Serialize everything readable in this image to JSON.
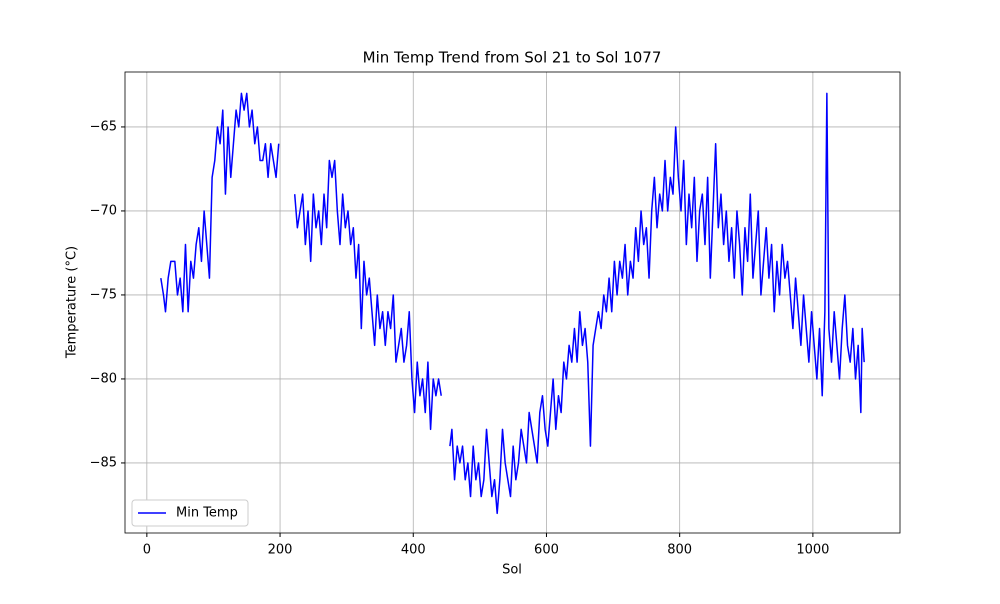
{
  "chart_data": {
    "type": "line",
    "title": "Min Temp Trend from Sol 21 to Sol 1077",
    "xlabel": "Sol",
    "ylabel": "Temperature (°C)",
    "x": [
      21,
      25,
      28,
      32,
      36,
      42,
      46,
      50,
      54,
      58,
      62,
      66,
      70,
      74,
      78,
      82,
      86,
      90,
      94,
      98,
      102,
      106,
      110,
      114,
      118,
      122,
      126,
      130,
      134,
      138,
      142,
      146,
      150,
      154,
      158,
      162,
      166,
      170,
      174,
      178,
      182,
      186,
      190,
      194,
      198,
      210,
      222,
      226,
      230,
      234,
      238,
      242,
      246,
      250,
      254,
      258,
      262,
      266,
      270,
      274,
      278,
      282,
      286,
      290,
      294,
      298,
      302,
      306,
      310,
      314,
      318,
      322,
      326,
      330,
      334,
      338,
      342,
      346,
      350,
      354,
      358,
      362,
      366,
      370,
      374,
      378,
      382,
      386,
      390,
      394,
      398,
      402,
      406,
      410,
      414,
      418,
      422,
      426,
      430,
      434,
      438,
      442,
      448,
      455,
      458,
      462,
      466,
      470,
      474,
      478,
      482,
      486,
      490,
      494,
      498,
      502,
      506,
      510,
      514,
      518,
      522,
      526,
      530,
      534,
      538,
      542,
      546,
      550,
      554,
      558,
      562,
      566,
      570,
      574,
      578,
      582,
      586,
      590,
      594,
      598,
      602,
      606,
      610,
      614,
      618,
      622,
      626,
      630,
      634,
      638,
      642,
      646,
      650,
      654,
      658,
      662,
      666,
      670,
      674,
      678,
      682,
      686,
      690,
      694,
      698,
      702,
      706,
      710,
      714,
      718,
      722,
      726,
      730,
      734,
      738,
      742,
      746,
      750,
      754,
      758,
      762,
      766,
      770,
      774,
      778,
      782,
      786,
      790,
      794,
      798,
      802,
      806,
      810,
      814,
      818,
      822,
      826,
      830,
      834,
      838,
      842,
      846,
      850,
      854,
      858,
      862,
      866,
      870,
      874,
      878,
      882,
      886,
      890,
      894,
      898,
      902,
      906,
      910,
      914,
      918,
      922,
      926,
      930,
      934,
      938,
      942,
      946,
      950,
      954,
      958,
      962,
      966,
      970,
      974,
      978,
      982,
      986,
      990,
      994,
      998,
      1002,
      1006,
      1010,
      1014,
      1018,
      1021,
      1024,
      1028,
      1032,
      1036,
      1040,
      1044,
      1048,
      1052,
      1056,
      1060,
      1064,
      1068,
      1072,
      1074,
      1077
    ],
    "series": [
      {
        "name": "Min Temp",
        "color": "#0000ff",
        "values": [
          -74,
          -75,
          -76,
          -74,
          -73,
          -73,
          -75,
          -74,
          -76,
          -72,
          -76,
          -73,
          -74,
          -72,
          -71,
          -73,
          -70,
          -72,
          -74,
          -68,
          -67,
          -65,
          -66,
          -64,
          -69,
          -65,
          -68,
          -66,
          -64,
          -65,
          -63,
          -64,
          -63,
          -65,
          -64,
          -66,
          -65,
          -67,
          -67,
          -66,
          -68,
          -66,
          -67,
          -68,
          -66,
          null,
          -69,
          -71,
          -70,
          -69,
          -72,
          -70,
          -73,
          -69,
          -71,
          -70,
          -72,
          -69,
          -71,
          -67,
          -68,
          -67,
          -70,
          -72,
          -69,
          -71,
          -70,
          -72,
          -71,
          -74,
          -72,
          -77,
          -73,
          -75,
          -74,
          -76,
          -78,
          -75,
          -77,
          -76,
          -78,
          -76,
          -77,
          -75,
          -79,
          -78,
          -77,
          -79,
          -78,
          -76,
          -80,
          -82,
          -79,
          -81,
          -80,
          -82,
          -79,
          -83,
          -80,
          -81,
          -80,
          -81,
          null,
          -84,
          -83,
          -86,
          -84,
          -85,
          -84,
          -86,
          -85,
          -87,
          -84,
          -86,
          -85,
          -87,
          -86,
          -83,
          -85,
          -87,
          -86,
          -88,
          -86,
          -83,
          -85,
          -86,
          -87,
          -84,
          -86,
          -85,
          -83,
          -84,
          -85,
          -82,
          -83,
          -84,
          -85,
          -82,
          -81,
          -83,
          -84,
          -82,
          -80,
          -83,
          -81,
          -82,
          -79,
          -80,
          -78,
          -79,
          -77,
          -79,
          -76,
          -78,
          -77,
          -79,
          -84,
          -78,
          -77,
          -76,
          -77,
          -75,
          -76,
          -74,
          -76,
          -73,
          -75,
          -73,
          -74,
          -72,
          -75,
          -73,
          -74,
          -71,
          -73,
          -70,
          -72,
          -71,
          -74,
          -70,
          -68,
          -71,
          -69,
          -70,
          -67,
          -70,
          -68,
          -69,
          -65,
          -68,
          -70,
          -67,
          -72,
          -69,
          -71,
          -68,
          -73,
          -70,
          -69,
          -72,
          -68,
          -74,
          -70,
          -66,
          -71,
          -69,
          -72,
          -70,
          -73,
          -71,
          -74,
          -70,
          -72,
          -75,
          -71,
          -73,
          -69,
          -74,
          -72,
          -70,
          -75,
          -73,
          -71,
          -74,
          -72,
          -76,
          -73,
          -75,
          -72,
          -74,
          -73,
          -75,
          -77,
          -74,
          -76,
          -78,
          -75,
          -77,
          -79,
          -76,
          -78,
          -80,
          -77,
          -81,
          -76,
          -63,
          -77,
          -79,
          -76,
          -78,
          -80,
          -77,
          -75,
          -78,
          -79,
          -77,
          -80,
          -78,
          -82,
          -77,
          -79
        ]
      }
    ],
    "xlim": [
      -32.8,
      1130.8
    ],
    "xticks": [
      0,
      200,
      400,
      600,
      800,
      1000
    ],
    "ylim": [
      -89.17,
      -61.73
    ],
    "yticks": [
      {
        "value": -85,
        "label": "−85"
      },
      {
        "value": -80,
        "label": "−80"
      },
      {
        "value": -75,
        "label": "−75"
      },
      {
        "value": -70,
        "label": "−70"
      },
      {
        "value": -65,
        "label": "−65"
      }
    ],
    "grid": true,
    "legend": "lower left"
  }
}
